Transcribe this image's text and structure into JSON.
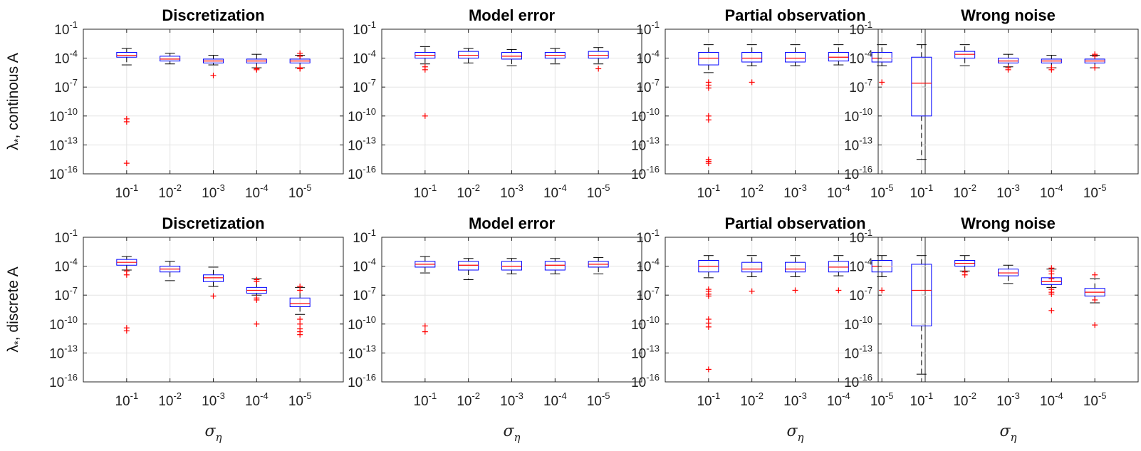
{
  "figure": {
    "row_ylabels": [
      {
        "main": "λ",
        "sub": "*",
        "rest": ", continous A"
      },
      {
        "main": "λ",
        "sub": "*",
        "rest": ", discrete A"
      }
    ],
    "xlabel": {
      "main": "σ",
      "sub": "η"
    }
  },
  "colors": {
    "box": "#0000ff",
    "median": "#ff0000",
    "whisker": "#000000",
    "outlier": "#ff0000",
    "grid": "#e3e3e3"
  },
  "chart_data": [
    {
      "type": "box",
      "title": "Discretization",
      "row": 0,
      "y_scale": "log",
      "ylim_exp": [
        -16,
        -1
      ],
      "ytick_exps": [
        -1,
        -4,
        -7,
        -10,
        -13,
        -16
      ],
      "categories": [
        {
          "base": "10",
          "exp": "-1"
        },
        {
          "base": "10",
          "exp": "-2"
        },
        {
          "base": "10",
          "exp": "-3"
        },
        {
          "base": "10",
          "exp": "-4"
        },
        {
          "base": "10",
          "exp": "-5"
        }
      ],
      "boxes": [
        {
          "wlo": -4.7,
          "q1": -3.9,
          "med": -3.7,
          "q3": -3.4,
          "whi": -3.0,
          "out": [
            -10.3,
            -10.6,
            -14.9
          ]
        },
        {
          "wlo": -4.6,
          "q1": -4.3,
          "med": -4.1,
          "q3": -3.8,
          "whi": -3.5,
          "out": []
        },
        {
          "wlo": -4.7,
          "q1": -4.5,
          "med": -4.3,
          "q3": -4.1,
          "whi": -3.7,
          "out": [
            -5.8
          ]
        },
        {
          "wlo": -5.0,
          "q1": -4.5,
          "med": -4.3,
          "q3": -4.1,
          "whi": -3.6,
          "out": [
            -5.1,
            -5.2
          ]
        },
        {
          "wlo": -5.0,
          "q1": -4.5,
          "med": -4.3,
          "q3": -4.1,
          "whi": -3.7,
          "out": [
            -3.5,
            -3.8,
            -5.0,
            -5.1
          ]
        }
      ]
    },
    {
      "type": "box",
      "title": "Model error",
      "row": 0,
      "y_scale": "log",
      "ylim_exp": [
        -16,
        -1
      ],
      "ytick_exps": [
        -1,
        -4,
        -7,
        -10,
        -13,
        -16
      ],
      "categories": [
        {
          "base": "10",
          "exp": "-1"
        },
        {
          "base": "10",
          "exp": "-2"
        },
        {
          "base": "10",
          "exp": "-3"
        },
        {
          "base": "10",
          "exp": "-4"
        },
        {
          "base": "10",
          "exp": "-5"
        }
      ],
      "boxes": [
        {
          "wlo": -4.6,
          "q1": -4.0,
          "med": -3.7,
          "q3": -3.4,
          "whi": -2.8,
          "out": [
            -4.9,
            -5.2,
            -10.0
          ]
        },
        {
          "wlo": -4.5,
          "q1": -4.0,
          "med": -3.7,
          "q3": -3.3,
          "whi": -3.0,
          "out": []
        },
        {
          "wlo": -4.8,
          "q1": -4.1,
          "med": -3.8,
          "q3": -3.4,
          "whi": -3.1,
          "out": []
        },
        {
          "wlo": -4.6,
          "q1": -4.0,
          "med": -3.7,
          "q3": -3.4,
          "whi": -3.0,
          "out": []
        },
        {
          "wlo": -4.6,
          "q1": -4.0,
          "med": -3.7,
          "q3": -3.3,
          "whi": -2.9,
          "out": [
            -5.1
          ]
        }
      ]
    },
    {
      "type": "box",
      "title": "Partial observation",
      "row": 0,
      "y_scale": "log",
      "ylim_exp": [
        -16,
        -1
      ],
      "ytick_exps": [
        -1,
        -4,
        -7,
        -10,
        -13,
        -16
      ],
      "categories": [
        {
          "base": "10",
          "exp": "-1"
        },
        {
          "base": "10",
          "exp": "-2"
        },
        {
          "base": "10",
          "exp": "-3"
        },
        {
          "base": "10",
          "exp": "-4"
        },
        {
          "base": "10",
          "exp": "-5"
        }
      ],
      "boxes": [
        {
          "wlo": -5.5,
          "q1": -4.7,
          "med": -4.0,
          "q3": -3.4,
          "whi": -2.6,
          "out": [
            -6.5,
            -6.8,
            -7.1,
            -10.0,
            -10.4,
            -14.5,
            -14.7,
            -14.9
          ]
        },
        {
          "wlo": -4.8,
          "q1": -4.4,
          "med": -4.0,
          "q3": -3.4,
          "whi": -2.6,
          "out": [
            -6.5
          ]
        },
        {
          "wlo": -4.8,
          "q1": -4.4,
          "med": -4.0,
          "q3": -3.4,
          "whi": -2.6,
          "out": []
        },
        {
          "wlo": -4.7,
          "q1": -4.3,
          "med": -3.9,
          "q3": -3.4,
          "whi": -2.6,
          "out": []
        },
        {
          "wlo": -4.8,
          "q1": -4.4,
          "med": -4.0,
          "q3": -3.4,
          "whi": -2.6,
          "out": [
            -6.5
          ]
        }
      ]
    },
    {
      "type": "box",
      "title": "Wrong noise",
      "row": 0,
      "y_scale": "log",
      "ylim_exp": [
        -16,
        -1
      ],
      "ytick_exps": [
        -1,
        -4,
        -7,
        -10,
        -13,
        -16
      ],
      "categories": [
        {
          "base": "10",
          "exp": "-1"
        },
        {
          "base": "10",
          "exp": "-2"
        },
        {
          "base": "10",
          "exp": "-3"
        },
        {
          "base": "10",
          "exp": "-4"
        },
        {
          "base": "10",
          "exp": "-5"
        }
      ],
      "boxes": [
        {
          "wlo": -14.5,
          "q1": -10.0,
          "med": -6.6,
          "q3": -3.9,
          "whi": -2.6,
          "out": []
        },
        {
          "wlo": -4.8,
          "q1": -4.0,
          "med": -3.6,
          "q3": -3.3,
          "whi": -2.6,
          "out": []
        },
        {
          "wlo": -4.9,
          "q1": -4.5,
          "med": -4.3,
          "q3": -4.0,
          "whi": -3.6,
          "out": [
            -5.0,
            -5.2
          ]
        },
        {
          "wlo": -5.0,
          "q1": -4.5,
          "med": -4.3,
          "q3": -4.1,
          "whi": -3.7,
          "out": [
            -5.0,
            -5.2
          ]
        },
        {
          "wlo": -5.0,
          "q1": -4.5,
          "med": -4.3,
          "q3": -4.1,
          "whi": -3.7,
          "out": [
            -3.6,
            -3.8,
            -5.0
          ]
        }
      ]
    },
    {
      "type": "box",
      "title": "Discretization",
      "row": 1,
      "y_scale": "log",
      "ylim_exp": [
        -16,
        -1
      ],
      "ytick_exps": [
        -1,
        -4,
        -7,
        -10,
        -13,
        -16
      ],
      "categories": [
        {
          "base": "10",
          "exp": "-1"
        },
        {
          "base": "10",
          "exp": "-2"
        },
        {
          "base": "10",
          "exp": "-3"
        },
        {
          "base": "10",
          "exp": "-4"
        },
        {
          "base": "10",
          "exp": "-5"
        }
      ],
      "boxes": [
        {
          "wlo": -4.4,
          "q1": -3.9,
          "med": -3.6,
          "q3": -3.3,
          "whi": -3.0,
          "out": [
            -4.5,
            -4.9,
            -10.4,
            -10.7
          ]
        },
        {
          "wlo": -5.5,
          "q1": -4.6,
          "med": -4.3,
          "q3": -4.0,
          "whi": -3.5,
          "out": []
        },
        {
          "wlo": -6.1,
          "q1": -5.6,
          "med": -5.2,
          "q3": -4.9,
          "whi": -4.1,
          "out": [
            -7.1
          ]
        },
        {
          "wlo": -7.0,
          "q1": -6.8,
          "med": -6.5,
          "q3": -6.2,
          "whi": -5.3,
          "out": [
            -5.4,
            -5.6,
            -7.3,
            -7.5,
            -10.0
          ]
        },
        {
          "wlo": -9.0,
          "q1": -8.2,
          "med": -7.9,
          "q3": -7.3,
          "whi": -6.2,
          "out": [
            -6.1,
            -6.5,
            -9.5,
            -10.0,
            -10.5,
            -10.8,
            -11.1
          ]
        }
      ]
    },
    {
      "type": "box",
      "title": "Model error",
      "row": 1,
      "y_scale": "log",
      "ylim_exp": [
        -16,
        -1
      ],
      "ytick_exps": [
        -1,
        -4,
        -7,
        -10,
        -13,
        -16
      ],
      "categories": [
        {
          "base": "10",
          "exp": "-1"
        },
        {
          "base": "10",
          "exp": "-2"
        },
        {
          "base": "10",
          "exp": "-3"
        },
        {
          "base": "10",
          "exp": "-4"
        },
        {
          "base": "10",
          "exp": "-5"
        }
      ],
      "boxes": [
        {
          "wlo": -4.7,
          "q1": -4.1,
          "med": -3.8,
          "q3": -3.5,
          "whi": -3.0,
          "out": [
            -10.2,
            -10.8
          ]
        },
        {
          "wlo": -5.4,
          "q1": -4.4,
          "med": -3.9,
          "q3": -3.5,
          "whi": -3.2,
          "out": []
        },
        {
          "wlo": -4.8,
          "q1": -4.4,
          "med": -4.0,
          "q3": -3.5,
          "whi": -3.2,
          "out": []
        },
        {
          "wlo": -4.8,
          "q1": -4.4,
          "med": -3.9,
          "q3": -3.5,
          "whi": -3.2,
          "out": []
        },
        {
          "wlo": -4.8,
          "q1": -4.1,
          "med": -3.8,
          "q3": -3.5,
          "whi": -3.1,
          "out": []
        }
      ]
    },
    {
      "type": "box",
      "title": "Partial observation",
      "row": 1,
      "y_scale": "log",
      "ylim_exp": [
        -16,
        -1
      ],
      "ytick_exps": [
        -1,
        -4,
        -7,
        -10,
        -13,
        -16
      ],
      "categories": [
        {
          "base": "10",
          "exp": "-1"
        },
        {
          "base": "10",
          "exp": "-2"
        },
        {
          "base": "10",
          "exp": "-3"
        },
        {
          "base": "10",
          "exp": "-4"
        },
        {
          "base": "10",
          "exp": "-5"
        }
      ],
      "boxes": [
        {
          "wlo": -5.2,
          "q1": -4.6,
          "med": -4.0,
          "q3": -3.4,
          "whi": -2.9,
          "out": [
            -6.4,
            -6.6,
            -6.9,
            -7.1,
            -9.5,
            -9.9,
            -10.3,
            -14.7
          ]
        },
        {
          "wlo": -5.1,
          "q1": -4.6,
          "med": -4.3,
          "q3": -3.6,
          "whi": -2.9,
          "out": [
            -6.6
          ]
        },
        {
          "wlo": -5.1,
          "q1": -4.6,
          "med": -4.3,
          "q3": -3.6,
          "whi": -2.9,
          "out": [
            -6.5
          ]
        },
        {
          "wlo": -5.0,
          "q1": -4.6,
          "med": -4.1,
          "q3": -3.5,
          "whi": -2.9,
          "out": [
            -6.5
          ]
        },
        {
          "wlo": -5.1,
          "q1": -4.6,
          "med": -4.0,
          "q3": -3.4,
          "whi": -2.9,
          "out": [
            -6.5
          ]
        }
      ]
    },
    {
      "type": "box",
      "title": "Wrong noise",
      "row": 1,
      "y_scale": "log",
      "ylim_exp": [
        -16,
        -1
      ],
      "ytick_exps": [
        -1,
        -4,
        -7,
        -10,
        -13,
        -16
      ],
      "categories": [
        {
          "base": "10",
          "exp": "-1"
        },
        {
          "base": "10",
          "exp": "-2"
        },
        {
          "base": "10",
          "exp": "-3"
        },
        {
          "base": "10",
          "exp": "-4"
        },
        {
          "base": "10",
          "exp": "-5"
        }
      ],
      "boxes": [
        {
          "wlo": -15.2,
          "q1": -10.2,
          "med": -6.5,
          "q3": -3.8,
          "whi": -2.9,
          "out": []
        },
        {
          "wlo": -4.5,
          "q1": -4.0,
          "med": -3.7,
          "q3": -3.4,
          "whi": -2.9,
          "out": [
            -4.6,
            -4.9
          ]
        },
        {
          "wlo": -5.8,
          "q1": -5.0,
          "med": -4.7,
          "q3": -4.3,
          "whi": -3.9,
          "out": []
        },
        {
          "wlo": -6.2,
          "q1": -5.9,
          "med": -5.6,
          "q3": -5.2,
          "whi": -4.3,
          "out": [
            -4.2,
            -4.5,
            -4.8,
            -5.3,
            -6.4,
            -6.7,
            -6.9,
            -8.6
          ]
        },
        {
          "wlo": -7.8,
          "q1": -7.1,
          "med": -6.7,
          "q3": -6.3,
          "whi": -5.3,
          "out": [
            -4.9,
            -7.5,
            -10.1
          ]
        }
      ]
    }
  ]
}
